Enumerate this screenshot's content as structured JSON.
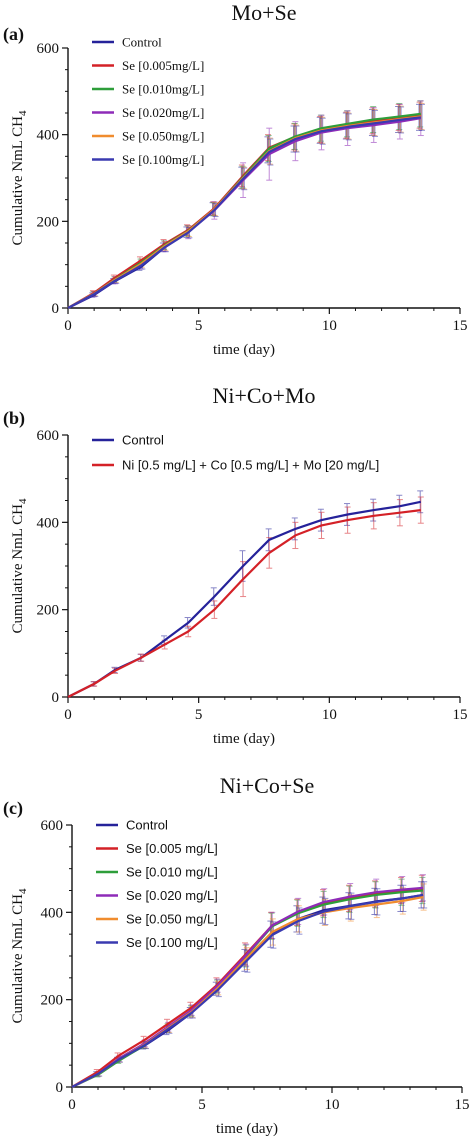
{
  "chart_data": [
    {
      "type": "line",
      "panel_letter": "(a)",
      "title": "Mo+Se",
      "xlabel": "time (day)",
      "ylabel_main": "Cumulative NmL CH",
      "ylabel_sub": "4",
      "xlim": [
        0,
        15
      ],
      "ylim": [
        0,
        600
      ],
      "xticks": [
        0,
        5,
        10,
        15
      ],
      "yticks": [
        0,
        200,
        400,
        600
      ],
      "legend_font": "serif",
      "legend_position": "top-left",
      "grid": false,
      "x": [
        0,
        1,
        1.8,
        2.8,
        3.7,
        4.6,
        5.6,
        6.7,
        7.7,
        8.7,
        9.7,
        10.7,
        11.7,
        12.7,
        13.5
      ],
      "series": [
        {
          "name": "Control",
          "color": "#25229a",
          "values": [
            0,
            30,
            62,
            95,
            140,
            175,
            228,
            300,
            365,
            390,
            410,
            420,
            428,
            435,
            440
          ],
          "err": [
            0,
            5,
            6,
            8,
            10,
            12,
            15,
            25,
            30,
            30,
            30,
            30,
            30,
            30,
            30
          ]
        },
        {
          "name": "Se [0.005mg/L]",
          "color": "#d42127",
          "values": [
            0,
            35,
            70,
            110,
            148,
            180,
            230,
            305,
            370,
            395,
            412,
            422,
            432,
            440,
            445
          ],
          "err": [
            0,
            5,
            6,
            8,
            10,
            12,
            15,
            25,
            30,
            30,
            30,
            30,
            30,
            30,
            30
          ]
        },
        {
          "name": "Se [0.010mg/L]",
          "color": "#2e9e3a",
          "values": [
            0,
            33,
            66,
            105,
            145,
            178,
            228,
            302,
            368,
            396,
            415,
            425,
            435,
            442,
            448
          ],
          "err": [
            0,
            5,
            6,
            8,
            10,
            12,
            15,
            25,
            30,
            30,
            30,
            30,
            30,
            30,
            30
          ]
        },
        {
          "name": "Se [0.020mg/L]",
          "color": "#8e2bb8",
          "values": [
            0,
            32,
            64,
            100,
            142,
            175,
            225,
            295,
            355,
            385,
            405,
            415,
            422,
            430,
            438
          ],
          "err": [
            0,
            6,
            8,
            10,
            12,
            15,
            20,
            40,
            60,
            45,
            40,
            40,
            40,
            40,
            40
          ]
        },
        {
          "name": "Se [0.050mg/L]",
          "color": "#f08c2e",
          "values": [
            0,
            33,
            65,
            102,
            143,
            177,
            228,
            300,
            362,
            392,
            410,
            420,
            428,
            436,
            442
          ],
          "err": [
            0,
            5,
            6,
            8,
            10,
            12,
            15,
            25,
            30,
            30,
            30,
            30,
            30,
            30,
            30
          ]
        },
        {
          "name": "Se [0.100mg/L]",
          "color": "#3a3ab0",
          "values": [
            0,
            32,
            63,
            98,
            140,
            174,
            226,
            298,
            360,
            390,
            408,
            418,
            426,
            434,
            440
          ],
          "err": [
            0,
            5,
            6,
            8,
            10,
            12,
            15,
            25,
            30,
            30,
            30,
            30,
            30,
            30,
            30
          ]
        }
      ]
    },
    {
      "type": "line",
      "panel_letter": "(b)",
      "title": "Ni+Co+Mo",
      "xlabel": "time (day)",
      "ylabel_main": "Cumulative NmL CH",
      "ylabel_sub": "4",
      "xlim": [
        0,
        15
      ],
      "ylim": [
        0,
        600
      ],
      "xticks": [
        0,
        5,
        10,
        15
      ],
      "yticks": [
        0,
        200,
        400,
        600
      ],
      "legend_font": "sans",
      "legend_position": "top-left",
      "grid": false,
      "x": [
        0,
        1,
        1.8,
        2.8,
        3.7,
        4.6,
        5.6,
        6.7,
        7.7,
        8.7,
        9.7,
        10.7,
        11.7,
        12.7,
        13.5
      ],
      "series": [
        {
          "name": "Control",
          "color": "#25229a",
          "values": [
            0,
            30,
            62,
            90,
            130,
            170,
            230,
            300,
            360,
            385,
            405,
            418,
            428,
            437,
            447
          ],
          "err": [
            0,
            5,
            6,
            8,
            10,
            12,
            20,
            35,
            25,
            25,
            25,
            25,
            25,
            25,
            25
          ]
        },
        {
          "name": "Ni [0.5 mg/L] + Co [0.5 mg/L] + Mo [20 mg/L]",
          "color": "#d42127",
          "values": [
            0,
            30,
            60,
            90,
            120,
            150,
            200,
            270,
            330,
            370,
            393,
            405,
            415,
            422,
            428
          ],
          "err": [
            0,
            5,
            6,
            8,
            10,
            12,
            20,
            40,
            35,
            30,
            30,
            30,
            30,
            30,
            30
          ]
        }
      ]
    },
    {
      "type": "line",
      "panel_letter": "(c)",
      "title": "Ni+Co+Se",
      "xlabel": "time (day)",
      "ylabel_main": "Cumulative NmL CH",
      "ylabel_sub": "4",
      "xlim": [
        0,
        15
      ],
      "ylim": [
        0,
        600
      ],
      "xticks": [
        0,
        5,
        10,
        15
      ],
      "yticks": [
        0,
        200,
        400,
        600
      ],
      "legend_font": "sans",
      "legend_position": "top-left",
      "grid": false,
      "x": [
        0,
        1,
        1.8,
        2.8,
        3.7,
        4.6,
        5.6,
        6.7,
        7.7,
        8.7,
        9.7,
        10.7,
        11.7,
        12.7,
        13.5
      ],
      "series": [
        {
          "name": "Control",
          "color": "#25229a",
          "values": [
            0,
            30,
            62,
            95,
            130,
            170,
            225,
            290,
            350,
            385,
            405,
            415,
            425,
            432,
            440
          ],
          "err": [
            0,
            5,
            6,
            8,
            10,
            12,
            15,
            25,
            30,
            30,
            30,
            30,
            30,
            30,
            30
          ]
        },
        {
          "name": "Se [0.005 mg/L]",
          "color": "#d42127",
          "values": [
            0,
            35,
            72,
            108,
            145,
            182,
            235,
            305,
            370,
            400,
            422,
            432,
            442,
            450,
            455
          ],
          "err": [
            0,
            5,
            6,
            8,
            10,
            12,
            15,
            25,
            30,
            30,
            30,
            30,
            30,
            30,
            30
          ]
        },
        {
          "name": "Se [0.010 mg/L]",
          "color": "#2e9e3a",
          "values": [
            0,
            28,
            60,
            96,
            135,
            174,
            230,
            300,
            368,
            398,
            418,
            430,
            440,
            446,
            450
          ],
          "err": [
            0,
            5,
            6,
            8,
            10,
            12,
            15,
            25,
            30,
            30,
            30,
            30,
            30,
            30,
            30
          ]
        },
        {
          "name": "Se [0.020 mg/L]",
          "color": "#8e2bb8",
          "values": [
            0,
            30,
            65,
            100,
            138,
            176,
            232,
            302,
            370,
            402,
            424,
            436,
            446,
            452,
            456
          ],
          "err": [
            0,
            5,
            6,
            8,
            10,
            12,
            15,
            25,
            30,
            30,
            30,
            30,
            30,
            30,
            30
          ]
        },
        {
          "name": "Se [0.050 mg/L]",
          "color": "#f08c2e",
          "values": [
            0,
            30,
            63,
            97,
            135,
            172,
            226,
            294,
            355,
            385,
            400,
            410,
            418,
            426,
            435
          ],
          "err": [
            0,
            5,
            6,
            8,
            10,
            12,
            15,
            25,
            30,
            30,
            30,
            30,
            30,
            30,
            30
          ]
        },
        {
          "name": "Se [0.100 mg/L]",
          "color": "#3a3ab0",
          "values": [
            0,
            30,
            63,
            96,
            133,
            170,
            222,
            288,
            348,
            380,
            402,
            414,
            424,
            432,
            440
          ],
          "err": [
            0,
            5,
            6,
            8,
            10,
            12,
            15,
            25,
            30,
            30,
            30,
            30,
            30,
            30,
            30
          ]
        }
      ]
    }
  ]
}
